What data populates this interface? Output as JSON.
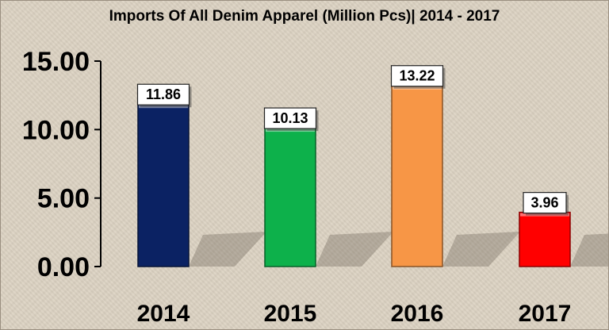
{
  "chart_data": {
    "type": "bar",
    "title": "Imports Of All Denim Apparel (Million Pcs)| 2014 - 2017",
    "categories": [
      "2014",
      "2015",
      "2016",
      "2017"
    ],
    "values": [
      11.86,
      10.13,
      13.22,
      3.96
    ],
    "data_labels": [
      "11.86",
      "10.13",
      "13.22",
      "3.96"
    ],
    "y_ticks": [
      "0.00",
      "5.00",
      "10.00",
      "15.00"
    ],
    "ylim": [
      0,
      15
    ],
    "xlabel": "",
    "ylabel": "",
    "grid": false,
    "legend": "none",
    "colors": [
      "#0b2263",
      "#0db14b",
      "#f79646",
      "#ff0000"
    ]
  }
}
